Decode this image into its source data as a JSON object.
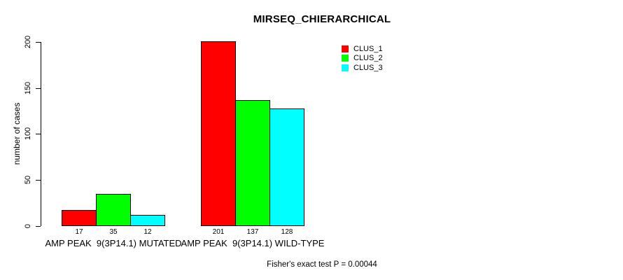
{
  "chart_data": {
    "type": "bar",
    "title": "MIRSEQ_CHIERARCHICAL",
    "ylabel": "number of cases",
    "xlabel": "",
    "ylim": [
      0,
      200
    ],
    "yticks": [
      0,
      50,
      100,
      150,
      200
    ],
    "grid": false,
    "legend_position": "inner-top-right",
    "categories": [
      "AMP PEAK  9(3P14.1) MUTATED",
      "AMP PEAK  9(3P14.1) WILD-TYPE"
    ],
    "series": [
      {
        "name": "CLUS_1",
        "color": "#ff0000",
        "values": [
          17,
          201
        ]
      },
      {
        "name": "CLUS_2",
        "color": "#00ff00",
        "values": [
          35,
          137
        ]
      },
      {
        "name": "CLUS_3",
        "color": "#00ffff",
        "values": [
          12,
          128
        ]
      }
    ],
    "bar_value_labels": [
      [
        "17",
        "35",
        "12"
      ],
      [
        "201",
        "137",
        "128"
      ]
    ],
    "footnote": "Fisher's exact test P = 0.00044",
    "colors": {
      "axis": "#000000",
      "text": "#000000",
      "background": "#ffffff"
    }
  }
}
